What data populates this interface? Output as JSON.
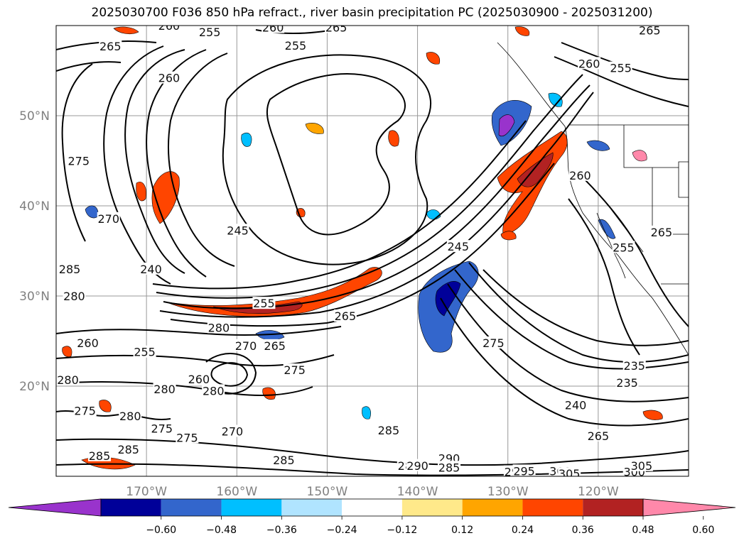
{
  "title": "2025030700 F036 850 hPa refract., river basin precipitation PC (2025030900 - 2025031200)",
  "map": {
    "lon_range": [
      -180,
      -110
    ],
    "lat_range": [
      10,
      60
    ],
    "x_ticks": [
      {
        "lon": -170,
        "label": "170°W"
      },
      {
        "lon": -160,
        "label": "160°W"
      },
      {
        "lon": -150,
        "label": "150°W"
      },
      {
        "lon": -140,
        "label": "140°W"
      },
      {
        "lon": -130,
        "label": "130°W"
      },
      {
        "lon": -120,
        "label": "120°W"
      }
    ],
    "y_ticks": [
      {
        "lat": 20,
        "label": "20°N"
      },
      {
        "lat": 30,
        "label": "30°N"
      },
      {
        "lat": 40,
        "label": "40°N"
      },
      {
        "lat": 50,
        "label": "50°N"
      }
    ],
    "contour_labels": [
      {
        "text": "265",
        "lon": -174.0,
        "lat": 57.7
      },
      {
        "text": "260",
        "lon": -167.5,
        "lat": 54.2
      },
      {
        "text": "275",
        "lon": -177.5,
        "lat": 45.0
      },
      {
        "text": "270",
        "lon": -174.2,
        "lat": 38.6
      },
      {
        "text": "285",
        "lon": -178.5,
        "lat": 33.0
      },
      {
        "text": "280",
        "lon": -178.0,
        "lat": 30.0
      },
      {
        "text": "240",
        "lon": -169.5,
        "lat": 33.0
      },
      {
        "text": "245",
        "lon": -159.9,
        "lat": 37.3
      },
      {
        "text": "265",
        "lon": -149.0,
        "lat": 59.8
      },
      {
        "text": "260",
        "lon": -156.0,
        "lat": 59.8
      },
      {
        "text": "255",
        "lon": -153.5,
        "lat": 57.8
      },
      {
        "text": "255",
        "lon": -157.0,
        "lat": 29.2
      },
      {
        "text": "265",
        "lon": -148.0,
        "lat": 27.8
      },
      {
        "text": "280",
        "lon": -162.0,
        "lat": 26.5
      },
      {
        "text": "260",
        "lon": -176.5,
        "lat": 24.8
      },
      {
        "text": "255",
        "lon": -170.2,
        "lat": 23.8
      },
      {
        "text": "270",
        "lon": -159.0,
        "lat": 24.5
      },
      {
        "text": "265",
        "lon": -155.8,
        "lat": 24.5
      },
      {
        "text": "275",
        "lon": -153.6,
        "lat": 21.8
      },
      {
        "text": "260",
        "lon": -164.2,
        "lat": 20.8
      },
      {
        "text": "280",
        "lon": -168.0,
        "lat": 19.7
      },
      {
        "text": "280",
        "lon": -162.6,
        "lat": 19.5
      },
      {
        "text": "280",
        "lon": -178.7,
        "lat": 20.7
      },
      {
        "text": "275",
        "lon": -176.8,
        "lat": 17.3
      },
      {
        "text": "280",
        "lon": -171.8,
        "lat": 16.7
      },
      {
        "text": "275",
        "lon": -168.3,
        "lat": 15.3
      },
      {
        "text": "275",
        "lon": -165.5,
        "lat": 14.3
      },
      {
        "text": "270",
        "lon": -160.5,
        "lat": 15.0
      },
      {
        "text": "285",
        "lon": -172.0,
        "lat": 13.0
      },
      {
        "text": "285",
        "lon": -175.2,
        "lat": 12.3
      },
      {
        "text": "285",
        "lon": -154.8,
        "lat": 11.8
      },
      {
        "text": "285",
        "lon": -143.2,
        "lat": 15.1
      },
      {
        "text": "290",
        "lon": -136.5,
        "lat": 12.0
      },
      {
        "text": "285",
        "lon": -141.0,
        "lat": 11.2
      },
      {
        "text": "290",
        "lon": -140.0,
        "lat": 11.2
      },
      {
        "text": "285",
        "lon": -136.5,
        "lat": 11.0
      },
      {
        "text": "290",
        "lon": -129.2,
        "lat": 10.5
      },
      {
        "text": "295",
        "lon": -128.2,
        "lat": 10.6
      },
      {
        "text": "300",
        "lon": -124.2,
        "lat": 10.6
      },
      {
        "text": "305",
        "lon": -123.2,
        "lat": 10.3
      },
      {
        "text": "300",
        "lon": -116.0,
        "lat": 10.5
      },
      {
        "text": "305",
        "lon": -115.2,
        "lat": 11.2
      },
      {
        "text": "265",
        "lon": -120.0,
        "lat": 14.5
      },
      {
        "text": "240",
        "lon": -122.5,
        "lat": 17.9
      },
      {
        "text": "235",
        "lon": -116.8,
        "lat": 20.4
      },
      {
        "text": "235",
        "lon": -116.0,
        "lat": 22.3
      },
      {
        "text": "275",
        "lon": -131.6,
        "lat": 24.8
      },
      {
        "text": "255",
        "lon": -117.5,
        "lat": 55.3
      },
      {
        "text": "260",
        "lon": -121.0,
        "lat": 55.8
      },
      {
        "text": "265",
        "lon": -114.3,
        "lat": 59.5
      },
      {
        "text": "260",
        "lon": -122.0,
        "lat": 43.4
      },
      {
        "text": "265",
        "lon": -113.0,
        "lat": 37.1
      },
      {
        "text": "255",
        "lon": -117.2,
        "lat": 35.4
      },
      {
        "text": "245",
        "lon": -135.5,
        "lat": 35.5
      },
      {
        "text": "255",
        "lon": -163.0,
        "lat": 59.3
      },
      {
        "text": "260",
        "lon": -167.5,
        "lat": 60.0
      }
    ]
  },
  "colorbar": {
    "colors": [
      "#9933cc",
      "#000099",
      "#3366cc",
      "#00bfff",
      "#b0e4ff",
      "#ffffff",
      "#ffe98a",
      "#ffa500",
      "#ff4500",
      "#b22222",
      "#ff88aa"
    ],
    "tick_labels": [
      "−0.60",
      "−0.48",
      "−0.36",
      "−0.24",
      "−0.12",
      "0.12",
      "0.24",
      "0.36",
      "0.48",
      "0.60"
    ]
  }
}
